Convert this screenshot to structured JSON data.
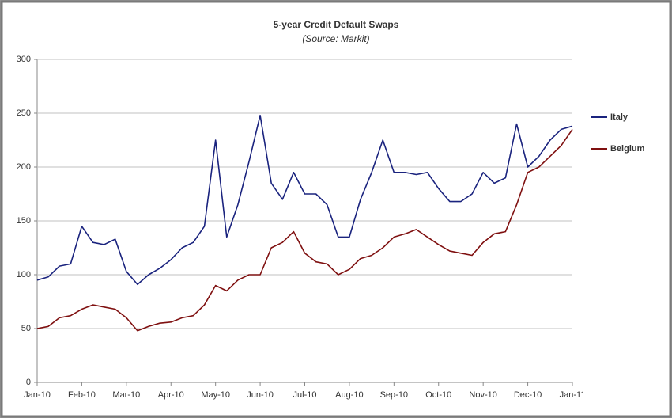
{
  "chart_data": {
    "type": "line",
    "title": "5-year Credit Default Swaps",
    "subtitle": "(Source: Markit)",
    "x": [
      0,
      0.25,
      0.5,
      0.75,
      1,
      1.25,
      1.5,
      1.75,
      2,
      2.25,
      2.5,
      2.75,
      3,
      3.25,
      3.5,
      3.75,
      4,
      4.25,
      4.5,
      4.75,
      5,
      5.25,
      5.5,
      5.75,
      6,
      6.25,
      6.5,
      6.75,
      7,
      7.25,
      7.5,
      7.75,
      8,
      8.25,
      8.5,
      8.75,
      9,
      9.25,
      9.5,
      9.75,
      10,
      10.25,
      10.5,
      10.75,
      11,
      11.25,
      11.5,
      11.75,
      12
    ],
    "series": [
      {
        "name": "Italy",
        "color": "#1a237e",
        "values": [
          95,
          98,
          108,
          110,
          145,
          130,
          128,
          133,
          103,
          91,
          100,
          106,
          114,
          125,
          130,
          145,
          225,
          135,
          165,
          205,
          248,
          185,
          170,
          195,
          175,
          175,
          165,
          135,
          135,
          170,
          195,
          225,
          195,
          195,
          193,
          195,
          180,
          168,
          168,
          175,
          195,
          185,
          190,
          240,
          200,
          210,
          225,
          235,
          238
        ]
      },
      {
        "name": "Belgium",
        "color": "#7f1010",
        "values": [
          50,
          52,
          60,
          62,
          68,
          72,
          70,
          68,
          60,
          48,
          52,
          55,
          56,
          60,
          62,
          72,
          90,
          85,
          95,
          100,
          100,
          125,
          130,
          140,
          120,
          112,
          110,
          100,
          105,
          115,
          118,
          125,
          135,
          138,
          142,
          135,
          128,
          122,
          120,
          118,
          130,
          138,
          140,
          165,
          195,
          200,
          210,
          220,
          235
        ]
      }
    ],
    "xlim": [
      0,
      12
    ],
    "xticks": [
      {
        "value": 0,
        "label": "Jan-10"
      },
      {
        "value": 1,
        "label": "Feb-10"
      },
      {
        "value": 2,
        "label": "Mar-10"
      },
      {
        "value": 3,
        "label": "Apr-10"
      },
      {
        "value": 4,
        "label": "May-10"
      },
      {
        "value": 5,
        "label": "Jun-10"
      },
      {
        "value": 6,
        "label": "Jul-10"
      },
      {
        "value": 7,
        "label": "Aug-10"
      },
      {
        "value": 8,
        "label": "Sep-10"
      },
      {
        "value": 9,
        "label": "Oct-10"
      },
      {
        "value": 10,
        "label": "Nov-10"
      },
      {
        "value": 11,
        "label": "Dec-10"
      },
      {
        "value": 12,
        "label": "Jan-11"
      }
    ],
    "ylim": [
      0,
      300
    ],
    "yticks": [
      0,
      50,
      100,
      150,
      200,
      250,
      300
    ],
    "grid": true,
    "legend": "right"
  }
}
